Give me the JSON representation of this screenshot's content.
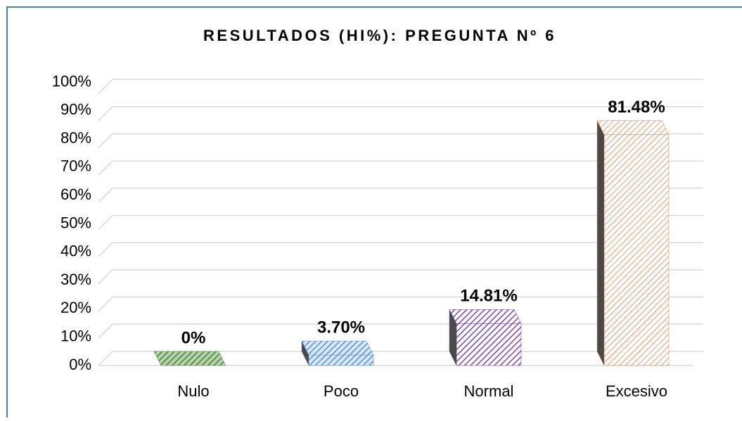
{
  "chart_data": {
    "type": "bar3d",
    "title": "RESULTADOS (HI%): PREGUNTA Nº 6",
    "categories": [
      "Nulo",
      "Poco",
      "Normal",
      "Excesivo"
    ],
    "values": [
      0,
      3.7,
      14.81,
      81.48
    ],
    "value_labels": [
      "0%",
      "3.70%",
      "14.81%",
      "81.48%"
    ],
    "colors": [
      "#5e9150",
      "#5b8fcf",
      "#7b3fb5",
      "#e8783a"
    ],
    "ylim": [
      0,
      100
    ],
    "yticks": [
      {
        "value": 0,
        "label": "0%"
      },
      {
        "value": 10,
        "label": "10%"
      },
      {
        "value": 20,
        "label": "20%"
      },
      {
        "value": 30,
        "label": "30%"
      },
      {
        "value": 40,
        "label": "40%"
      },
      {
        "value": 50,
        "label": "50%"
      },
      {
        "value": 60,
        "label": "60%"
      },
      {
        "value": 70,
        "label": "70%"
      },
      {
        "value": 80,
        "label": "80%"
      },
      {
        "value": 90,
        "label": "90%"
      },
      {
        "value": 100,
        "label": "100%"
      }
    ],
    "grid": true
  }
}
